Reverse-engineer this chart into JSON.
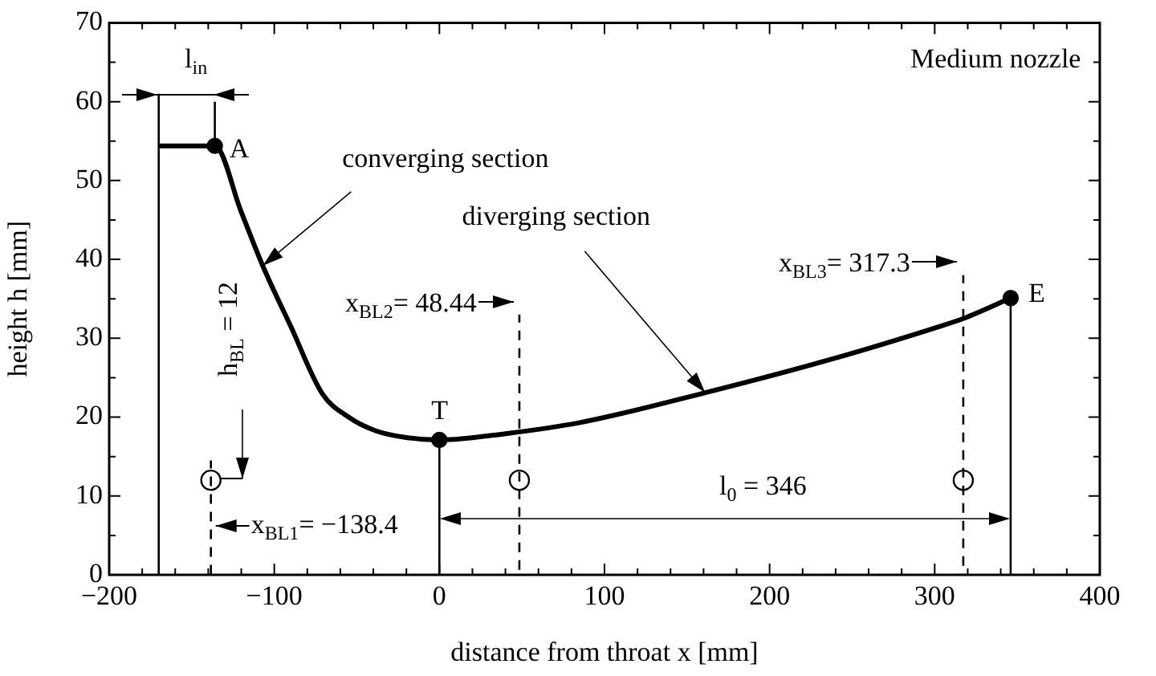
{
  "chart_data": {
    "type": "line",
    "xlabel": "distance from throat x [mm]",
    "ylabel": "height h [mm]",
    "xlim": [
      -200,
      400
    ],
    "ylim": [
      0,
      70
    ],
    "xticks": [
      {
        "value": -200,
        "label": "−200"
      },
      {
        "value": -180,
        "label": null
      },
      {
        "value": -160,
        "label": null
      },
      {
        "value": -140,
        "label": null
      },
      {
        "value": -120,
        "label": null
      },
      {
        "value": -100,
        "label": "−100"
      },
      {
        "value": -80,
        "label": null
      },
      {
        "value": -60,
        "label": null
      },
      {
        "value": -40,
        "label": null
      },
      {
        "value": -20,
        "label": null
      },
      0,
      {
        "value": 20,
        "label": null
      },
      {
        "value": 40,
        "label": null
      },
      {
        "value": 60,
        "label": null
      },
      {
        "value": 80,
        "label": null
      },
      100,
      {
        "value": 120,
        "label": null
      },
      {
        "value": 140,
        "label": null
      },
      {
        "value": 160,
        "label": null
      },
      {
        "value": 180,
        "label": null
      },
      200,
      {
        "value": 220,
        "label": null
      },
      {
        "value": 240,
        "label": null
      },
      {
        "value": 260,
        "label": null
      },
      {
        "value": 280,
        "label": null
      },
      300,
      {
        "value": 320,
        "label": null
      },
      {
        "value": 340,
        "label": null
      },
      {
        "value": 360,
        "label": null
      },
      {
        "value": 380,
        "label": null
      },
      400
    ],
    "yticks": [
      0,
      {
        "value": 5,
        "label": null
      },
      10,
      {
        "value": 15,
        "label": null
      },
      20,
      {
        "value": 25,
        "label": null
      },
      30,
      {
        "value": 35,
        "label": null
      },
      40,
      {
        "value": 45,
        "label": null
      },
      50,
      {
        "value": 55,
        "label": null
      },
      60,
      {
        "value": 65,
        "label": null
      },
      70
    ],
    "grid": false,
    "legend": false,
    "series": [
      {
        "type": "line",
        "color": "#000000",
        "marker": "none",
        "x": [
          -170,
          -136,
          -120,
          -107,
          -90,
          -71,
          -55,
          -39,
          -20,
          0,
          40,
          85,
          161,
          240,
          300,
          317.3,
          346
        ],
        "values": [
          54.4,
          54.4,
          46,
          39.2,
          31.5,
          23,
          20,
          18.3,
          17.4,
          17.1,
          17.9,
          19.3,
          23.1,
          27.5,
          31.3,
          32.5,
          35.1
        ]
      },
      {
        "type": "line",
        "color": "#000000",
        "marker": "none",
        "x": [
          -170,
          -170
        ],
        "values": [
          0,
          61
        ]
      },
      {
        "type": "line",
        "color": "#000000",
        "marker": "none",
        "x": [
          -136,
          -136
        ],
        "values": [
          54.4,
          60
        ]
      },
      {
        "type": "line",
        "color": "#000000",
        "marker": "none",
        "x": [
          0,
          0
        ],
        "values": [
          0,
          17.1
        ]
      },
      {
        "type": "line",
        "color": "#000000",
        "marker": "none",
        "x": [
          346,
          346
        ],
        "values": [
          0,
          35.1
        ]
      },
      {
        "type": "line",
        "color": "#000000",
        "marker": "none",
        "line_style": "dashed",
        "x": [
          -138.4,
          -138.4
        ],
        "values": [
          0,
          14.5
        ]
      },
      {
        "type": "line",
        "color": "#000000",
        "marker": "none",
        "line_style": "dashed",
        "x": [
          48.44,
          48.44
        ],
        "values": [
          0,
          33
        ]
      },
      {
        "type": "line",
        "color": "#000000",
        "marker": "none",
        "line_style": "dashed",
        "x": [
          317.3,
          317.3
        ],
        "values": [
          0,
          38
        ]
      },
      {
        "type": "scatter",
        "color": "#000000",
        "marker": "circle",
        "x": [
          -136,
          0,
          346
        ],
        "values": [
          54.4,
          17.1,
          35.1
        ]
      },
      {
        "type": "scatter",
        "color": "#000000",
        "marker": "circle",
        "x": [
          -138.4,
          48.44,
          317.3
        ],
        "values": [
          12,
          12,
          12
        ]
      }
    ],
    "annotations": [
      "Medium nozzle",
      "l$_{in}$",
      {
        "text": "A",
        "x": -136,
        "y": 54.4
      },
      {
        "text": "T",
        "x": 0,
        "y": 17.1
      },
      {
        "text": "E",
        "x": 346,
        "y": 35.1
      },
      {
        "text": "converging section",
        "x": -107,
        "y": 39.2
      },
      {
        "text": "diverging section",
        "x": 161,
        "y": 23.1
      },
      "x$_{BL2}$= 48.44",
      "x$_{BL3}$= 317.3",
      {
        "text": "x$_{BL1}$= −138.4",
        "x": -138.4,
        "y": 6.2
      },
      "l$_{0}$ = 346",
      "h$_{BL}$ = 12"
    ]
  }
}
